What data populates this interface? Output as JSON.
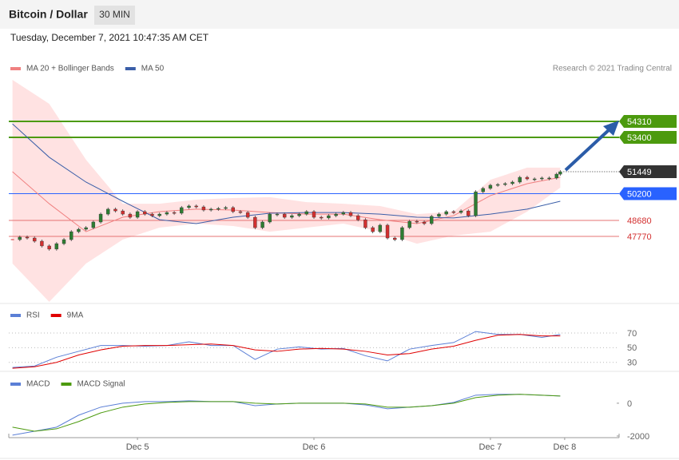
{
  "header": {
    "title": "Bitcoin / Dollar",
    "timeframe": "30 MIN",
    "timestamp": "Tuesday, December 7, 2021 10:47:35 AM CET"
  },
  "chart_data": [
    {
      "type": "candlestick",
      "source": "Research © 2021 Trading Central",
      "color_up": "#2e7d32",
      "color_down": "#d32f2f",
      "x": [
        -17,
        -16,
        -15,
        -14,
        -13,
        -12,
        -11,
        -10,
        -9,
        -8,
        -7,
        -6,
        -5,
        -4,
        -3,
        -2,
        -1,
        0,
        1,
        2,
        3,
        4,
        5,
        6,
        7,
        8,
        9,
        10,
        11,
        12,
        13,
        14,
        15,
        16,
        17,
        18,
        19,
        20,
        21,
        22,
        23,
        24,
        25,
        26,
        27,
        28,
        29,
        30,
        31,
        32,
        33,
        34,
        35,
        36,
        37,
        38,
        39,
        40,
        41,
        42,
        43,
        44,
        45,
        46,
        47,
        48,
        49,
        50,
        51,
        52,
        53,
        54,
        55,
        56,
        57,
        57.5
      ],
      "close": [
        47590,
        47730,
        47680,
        47500,
        47230,
        47050,
        47360,
        47590,
        48040,
        48180,
        48270,
        48590,
        49040,
        49320,
        49220,
        49040,
        48860,
        49180,
        49040,
        48950,
        49040,
        49130,
        49090,
        49410,
        49500,
        49450,
        49270,
        49320,
        49360,
        49410,
        49180,
        49130,
        48860,
        48270,
        48590,
        49040,
        49040,
        48860,
        48950,
        49040,
        49180,
        48860,
        48820,
        48950,
        49040,
        49130,
        48950,
        48720,
        48270,
        48040,
        48410,
        47680,
        47590,
        48270,
        48630,
        48590,
        48500,
        48910,
        49040,
        49180,
        49130,
        49220,
        48950,
        50310,
        50500,
        50680,
        50720,
        50770,
        50860,
        51130,
        51040,
        51040,
        51090,
        51090,
        51310,
        51449
      ],
      "series": [
        {
          "name": "MA 20 + Bollinger Bands",
          "color": "#f08080",
          "band_color": "#ffd6d6",
          "x": [
            -17,
            -12,
            -7,
            -2,
            3,
            8,
            13,
            18,
            23,
            28,
            33,
            38,
            43,
            48,
            53,
            57.5
          ],
          "values": [
            51450,
            49630,
            48040,
            48860,
            49180,
            49320,
            49270,
            49130,
            49040,
            49040,
            48720,
            48500,
            48950,
            50090,
            50770,
            51130
          ],
          "upper": [
            56670,
            55310,
            52130,
            49630,
            49630,
            49860,
            49950,
            50000,
            49720,
            49630,
            49500,
            49040,
            49180,
            50990,
            51680,
            51680
          ],
          "lower": [
            46230,
            44050,
            46230,
            47590,
            48270,
            48500,
            48360,
            48040,
            48270,
            48500,
            48040,
            47360,
            47820,
            48040,
            49180,
            50540
          ]
        },
        {
          "name": "MA 50",
          "color": "#3a5ea8",
          "x": [
            -17,
            -12,
            -7,
            -2,
            3,
            8,
            13,
            18,
            23,
            28,
            33,
            38,
            43,
            48,
            53,
            57.5
          ],
          "values": [
            54170,
            52270,
            50860,
            49770,
            48720,
            48500,
            48860,
            49090,
            49130,
            49130,
            49040,
            48860,
            48820,
            49040,
            49320,
            49770
          ]
        }
      ],
      "levels": [
        {
          "value": 54310,
          "color": "#4c9a0e",
          "label_style": "box",
          "line": "solid"
        },
        {
          "value": 53400,
          "color": "#4c9a0e",
          "label_style": "box",
          "line": "solid"
        },
        {
          "value": 51449,
          "color": "#333333",
          "label_style": "box",
          "line": "dotted"
        },
        {
          "value": 50200,
          "color": "#2962ff",
          "label_style": "box",
          "line": "solid"
        },
        {
          "value": 48680,
          "color": "#e57373",
          "label_style": "plain",
          "line": "solid"
        },
        {
          "value": 47770,
          "color": "#e57373",
          "label_style": "plain",
          "line": "solid"
        }
      ],
      "ylim": [
        44050,
        56670
      ],
      "xlim": [
        -17.5,
        65.5
      ]
    },
    {
      "type": "line",
      "series": [
        {
          "name": "RSI",
          "color": "#5b7fd6",
          "x": [
            -17,
            -14,
            -11,
            -8,
            -5,
            -2,
            1,
            4,
            7,
            10,
            13,
            16,
            19,
            22,
            25,
            28,
            31,
            34,
            37,
            40,
            43,
            46,
            49,
            52,
            55,
            57.5
          ],
          "values": [
            23,
            25,
            37,
            45,
            53,
            53,
            52,
            53,
            58,
            53,
            53,
            34,
            48,
            51,
            48,
            49,
            39,
            32,
            48,
            53,
            57,
            72,
            68,
            68,
            64,
            68
          ]
        },
        {
          "name": "9MA",
          "color": "#e00000",
          "x": [
            -17,
            -14,
            -11,
            -8,
            -5,
            -2,
            1,
            4,
            7,
            10,
            13,
            16,
            19,
            22,
            25,
            28,
            31,
            34,
            37,
            40,
            43,
            46,
            49,
            52,
            55,
            57.5
          ],
          "values": [
            22,
            24,
            30,
            40,
            47,
            52,
            53,
            53,
            54,
            55,
            53,
            47,
            45,
            48,
            49,
            48,
            45,
            40,
            42,
            48,
            52,
            60,
            67,
            68,
            66,
            66
          ]
        }
      ],
      "ylim": [
        21,
        83
      ],
      "yticks": [
        70,
        50,
        30
      ],
      "grid": true,
      "xlim": [
        -17.5,
        65.5
      ]
    },
    {
      "type": "line",
      "series": [
        {
          "name": "MACD",
          "color": "#5b7fd6",
          "x": [
            -17,
            -14,
            -11,
            -8,
            -5,
            -2,
            1,
            4,
            7,
            10,
            13,
            16,
            19,
            22,
            25,
            28,
            31,
            34,
            37,
            40,
            43,
            46,
            49,
            52,
            55,
            57.5
          ],
          "values": [
            -1950,
            -1710,
            -1460,
            -730,
            -240,
            0,
            100,
            100,
            150,
            100,
            100,
            -150,
            -50,
            0,
            0,
            0,
            -100,
            -340,
            -240,
            -150,
            50,
            490,
            540,
            540,
            490,
            440
          ]
        },
        {
          "name": "MACD Signal",
          "color": "#4c9a0e",
          "x": [
            -17,
            -14,
            -11,
            -8,
            -5,
            -2,
            1,
            4,
            7,
            10,
            13,
            16,
            19,
            22,
            25,
            28,
            31,
            34,
            37,
            40,
            43,
            46,
            49,
            52,
            55,
            57.5
          ],
          "values": [
            -1460,
            -1710,
            -1560,
            -1120,
            -590,
            -240,
            -50,
            50,
            100,
            100,
            100,
            0,
            -50,
            0,
            0,
            0,
            -50,
            -240,
            -240,
            -150,
            0,
            340,
            490,
            540,
            490,
            440
          ]
        }
      ],
      "ylim": [
        -2100,
        1700
      ],
      "yticks": [
        0,
        -2000
      ],
      "grid": false,
      "xlim": [
        -17.5,
        65.5
      ],
      "xticks": [
        {
          "value": 0,
          "label": "Dec 5"
        },
        {
          "value": 24,
          "label": "Dec 6"
        },
        {
          "value": 48,
          "label": "Dec 7"
        },
        {
          "value": 58.1,
          "label": "Dec 8"
        }
      ]
    }
  ]
}
